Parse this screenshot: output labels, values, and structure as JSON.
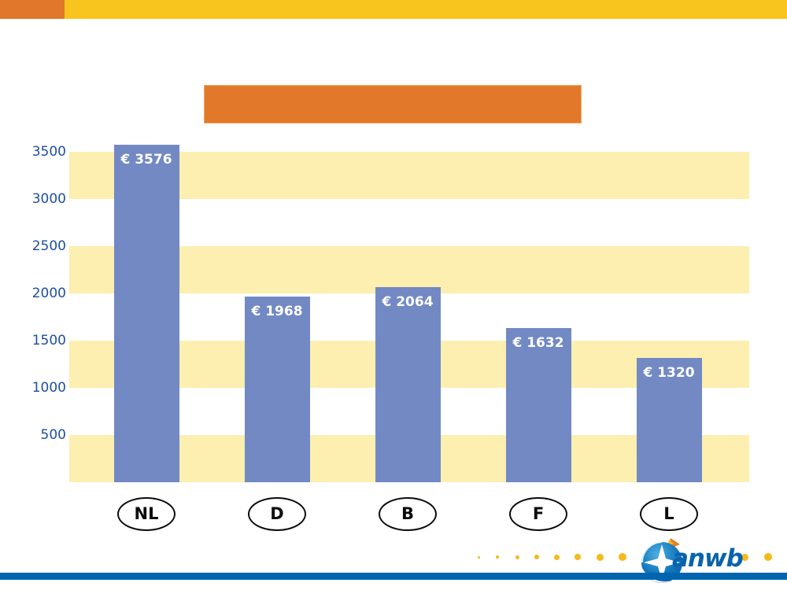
{
  "title_box": {
    "text": ""
  },
  "chart_data": {
    "type": "bar",
    "categories": [
      "NL",
      "D",
      "B",
      "F",
      "L"
    ],
    "values": [
      3576,
      1968,
      2064,
      1632,
      1320
    ],
    "bar_labels": [
      "€ 3576",
      "€ 1968",
      "€ 2064",
      "€ 1632",
      "€ 1320"
    ],
    "title": "",
    "xlabel": "",
    "ylabel": "",
    "ylim": [
      0,
      3600
    ],
    "yticks": [
      3500,
      3000,
      2500,
      2000,
      1500,
      1000,
      500
    ],
    "grid": "alternating horizontal yellow bands, 500 units tall (0-500, 1000-1500, 2000-2500, 3000-3500)",
    "legend": "none",
    "bar_color": "#7289C4",
    "bar_label_color": "#FFFFFF",
    "band_color": "#FCEFAF",
    "axis_text_color": "#1E4FA1"
  },
  "header": {
    "bar_color": "#F8C51E",
    "accent_color": "#E1772A",
    "title_box_color": "#E2792A"
  },
  "footer": {
    "logo_text": "anwb",
    "logo_blue": "#0065B0",
    "dot_color": "#F5B91C",
    "bottom_bar_color": "#0065B0"
  }
}
